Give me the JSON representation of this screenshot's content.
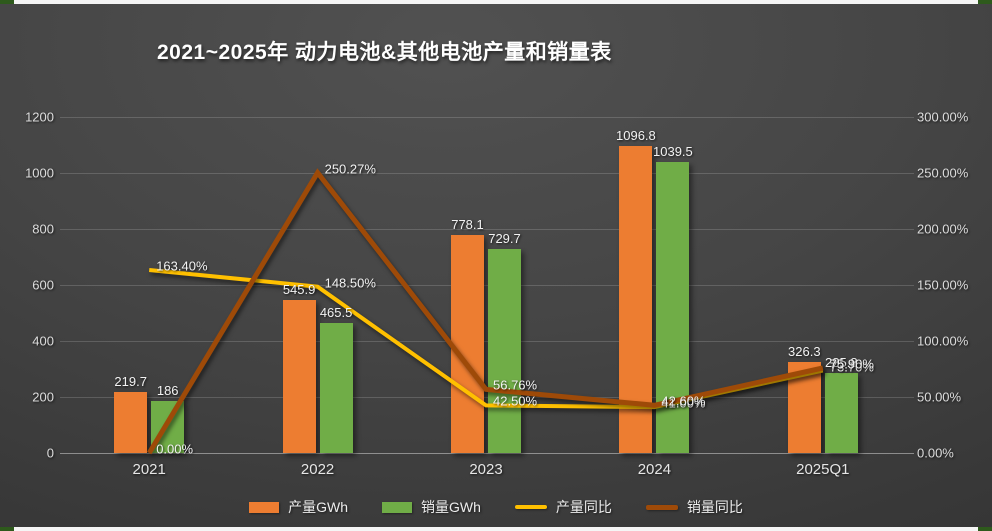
{
  "page": {
    "edge_color": "#f5f5f5",
    "corner_accent_color": "#2e5a1c",
    "background_dark": "#3a3a3a"
  },
  "chart_data": {
    "type": "combo-bar-line",
    "title": "2021~2025年 动力电池&其他电池产量和销量表",
    "categories": [
      "2021",
      "2022",
      "2023",
      "2024",
      "2025Q1"
    ],
    "bar_series": [
      {
        "name": "产量GWh",
        "slug": "production",
        "color": "#ED7D31",
        "values": [
          219.7,
          545.9,
          778.1,
          1096.8,
          326.3
        ],
        "labels": [
          "219.7",
          "545.9",
          "778.1",
          "1096.8",
          "326.3"
        ]
      },
      {
        "name": "销量GWh",
        "slug": "sales",
        "color": "#70AD47",
        "values": [
          186,
          465.5,
          729.7,
          1039.5,
          285.8
        ],
        "labels": [
          "186",
          "465.5",
          "729.7",
          "1039.5",
          "285.8"
        ]
      }
    ],
    "line_series": [
      {
        "name": "产量同比",
        "slug": "production-yoy",
        "color": "#FFC000",
        "stroke_width": 4,
        "values_pct": [
          163.4,
          148.5,
          42.5,
          41.0,
          73.7
        ],
        "labels": [
          "163.40%",
          "148.50%",
          "42.50%",
          "41.00%",
          "73.70%"
        ]
      },
      {
        "name": "销量同比",
        "slug": "sales-yoy",
        "color": "#9E4A08",
        "stroke_width": 5,
        "values_pct": [
          0.0,
          250.27,
          56.76,
          42.6,
          75.9
        ],
        "labels": [
          "0.00%",
          "250.27%",
          "56.76%",
          "42.60%",
          "75.90%"
        ]
      }
    ],
    "left_axis": {
      "max": 1200,
      "tick_values": [
        1200,
        1000,
        800,
        600,
        400,
        200,
        0
      ],
      "tick_labels": [
        "1200",
        "1000",
        "800",
        "600",
        "400",
        "200",
        "0"
      ]
    },
    "right_axis": {
      "max_pct": 300,
      "tick_labels": [
        "300.00%",
        "250.00%",
        "200.00%",
        "150.00%",
        "100.00%",
        "50.00%",
        "0.00%"
      ]
    },
    "grid": true,
    "legend_position": "bottom"
  }
}
